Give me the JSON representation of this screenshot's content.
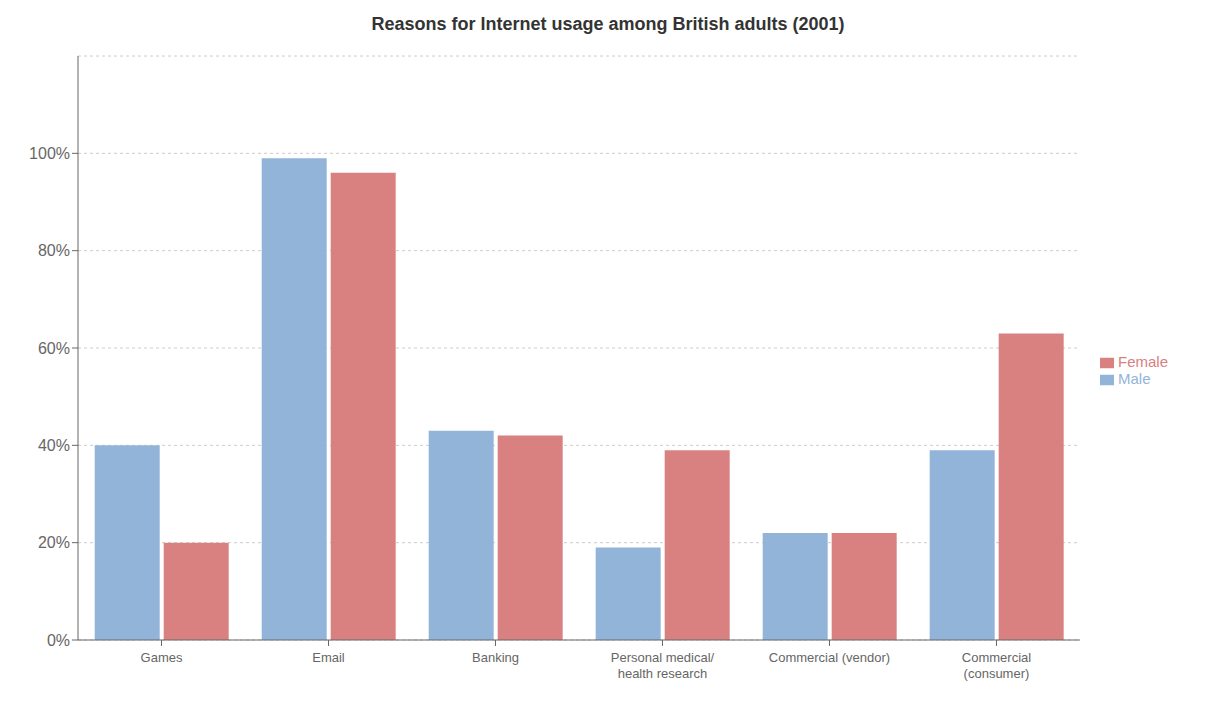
{
  "chart_data": {
    "type": "bar",
    "title": "Reasons for Internet usage among British adults (2001)",
    "categories": [
      "Games",
      "Email",
      "Banking",
      "Personal medical/\nhealth research",
      "Commercial (vendor)",
      "Commercial\n(consumer)"
    ],
    "series": [
      {
        "name": "Male",
        "color": "#92b4d9",
        "values": [
          40,
          99,
          43,
          19,
          22,
          39
        ]
      },
      {
        "name": "Female",
        "color": "#d98080",
        "values": [
          20,
          96,
          42,
          39,
          22,
          63
        ]
      }
    ],
    "ylim": [
      0,
      120
    ],
    "yticks": [
      {
        "value": 0,
        "label": "0%"
      },
      {
        "value": 20,
        "label": "20%"
      },
      {
        "value": 40,
        "label": "40%"
      },
      {
        "value": 60,
        "label": "60%"
      },
      {
        "value": 80,
        "label": "80%"
      },
      {
        "value": 100,
        "label": "100%"
      }
    ],
    "grid": true,
    "legend": "right"
  }
}
